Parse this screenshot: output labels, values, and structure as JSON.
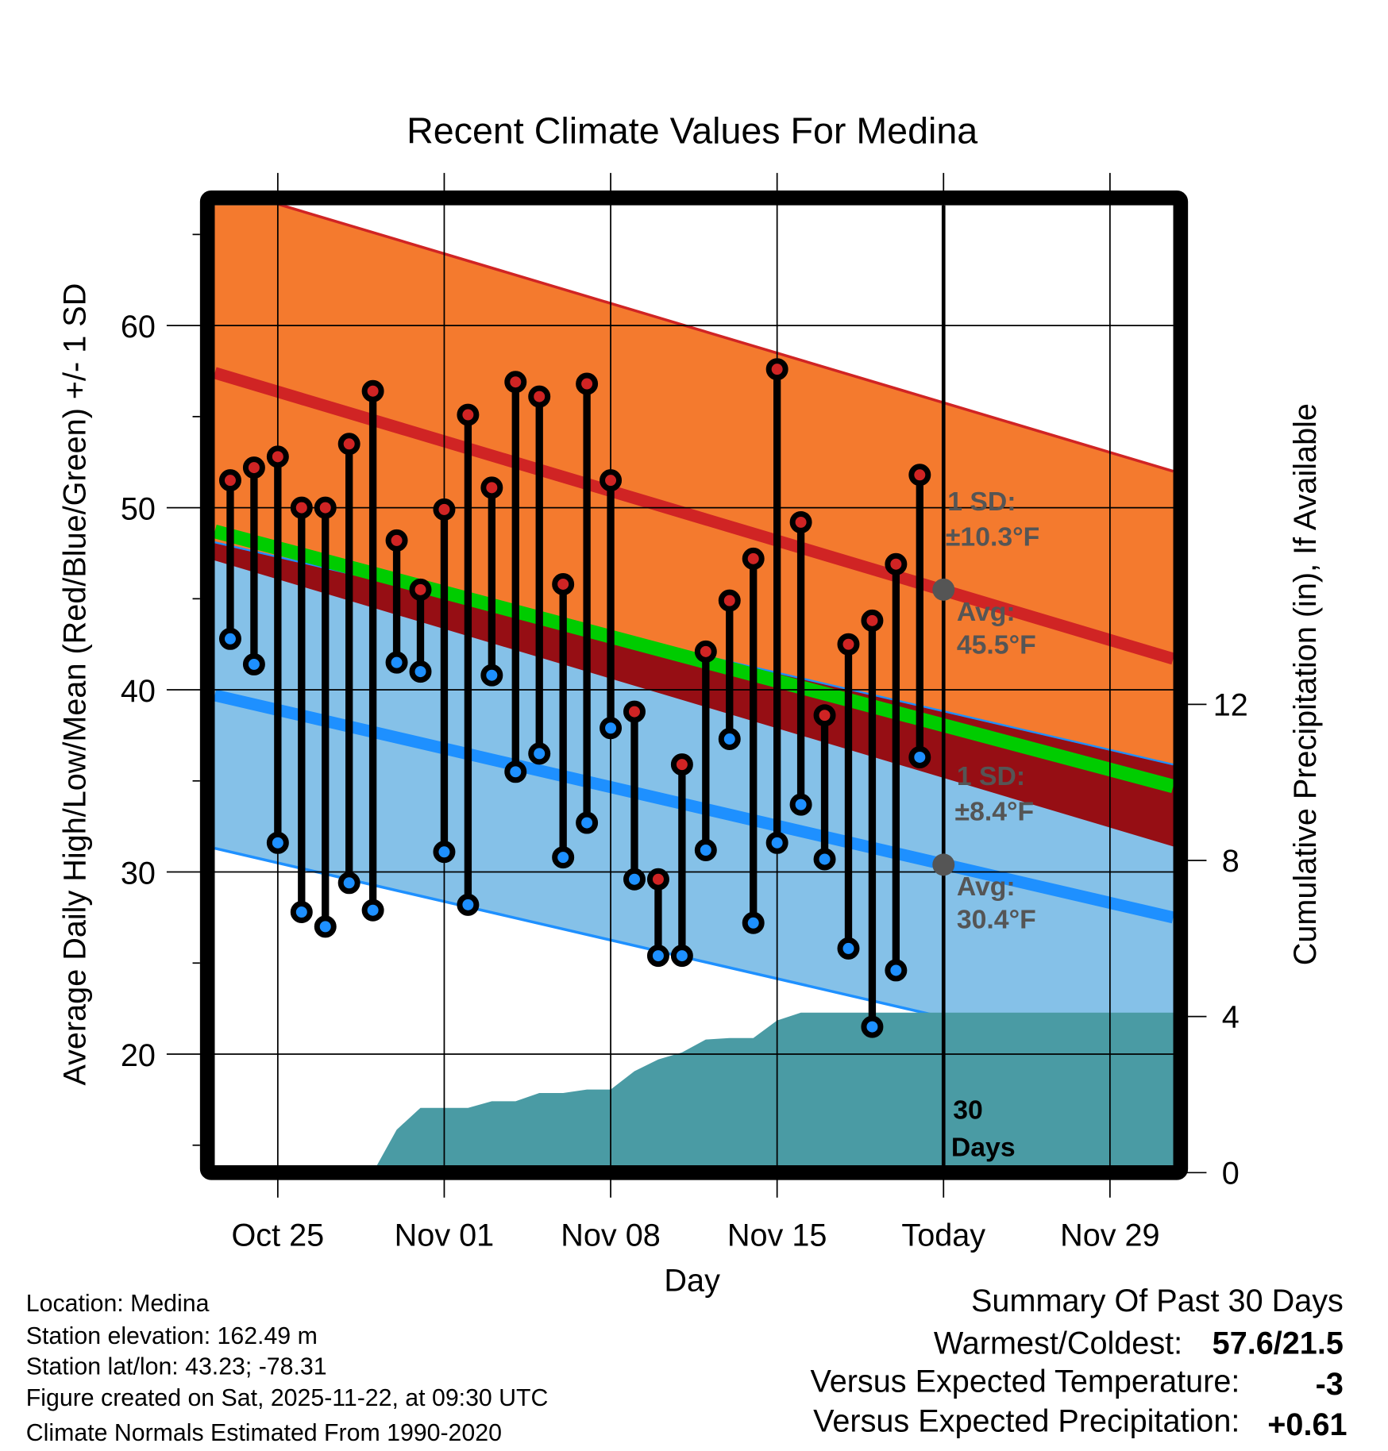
{
  "chart_data": {
    "type": "line",
    "title": "Recent Climate Values For Medina",
    "xlabel": "Day",
    "ylabel": "Average Daily High/Low/Mean (Red/Blue/Green) +/- 1 SD",
    "y2label": "Cumulative Precipitation (in), If Available",
    "x_start_date": "Oct 23",
    "xlim_days": [
      -0.65,
      39.66
    ],
    "ylim": [
      13.9,
      66.6
    ],
    "y2lim": [
      0,
      24.6
    ],
    "x_ticks": [
      {
        "day": 2,
        "label": "Oct 25"
      },
      {
        "day": 9,
        "label": "Nov 01"
      },
      {
        "day": 16,
        "label": "Nov 08"
      },
      {
        "day": 23,
        "label": "Nov 15"
      },
      {
        "day": 30,
        "label": "Today"
      },
      {
        "day": 37,
        "label": "Nov 29"
      }
    ],
    "y_ticks": [
      "20",
      "30",
      "40",
      "50",
      "60"
    ],
    "y2_ticks": [
      "0",
      "4",
      "8",
      "12"
    ],
    "days": [
      "Oct 23",
      "Oct 24",
      "Oct 25",
      "Oct 26",
      "Oct 27",
      "Oct 28",
      "Oct 29",
      "Oct 30",
      "Oct 31",
      "Nov 01",
      "Nov 02",
      "Nov 03",
      "Nov 04",
      "Nov 05",
      "Nov 06",
      "Nov 07",
      "Nov 08",
      "Nov 09",
      "Nov 10",
      "Nov 11",
      "Nov 12",
      "Nov 13",
      "Nov 14",
      "Nov 15",
      "Nov 16",
      "Nov 17",
      "Nov 18",
      "Nov 19",
      "Nov 20",
      "Nov 21"
    ],
    "series": [
      {
        "name": "Daily High",
        "color": "#d02424",
        "values": [
          51.5,
          52.2,
          52.8,
          50.0,
          50.0,
          53.5,
          56.4,
          48.2,
          45.5,
          49.9,
          55.1,
          51.1,
          56.9,
          56.1,
          45.8,
          56.8,
          51.5,
          38.8,
          29.6,
          35.9,
          42.1,
          44.9,
          47.2,
          57.6,
          49.2,
          38.6,
          42.5,
          43.8,
          46.9,
          51.8
        ]
      },
      {
        "name": "Daily Low",
        "color": "#1e90ff",
        "values": [
          42.8,
          41.4,
          31.6,
          27.8,
          27.0,
          29.4,
          27.9,
          41.5,
          41.0,
          31.1,
          28.2,
          40.8,
          35.5,
          36.5,
          30.8,
          32.7,
          37.9,
          29.6,
          25.4,
          25.4,
          31.2,
          37.3,
          27.2,
          31.6,
          33.7,
          30.7,
          25.8,
          21.5,
          24.6,
          36.3
        ]
      },
      {
        "name": "Cumulative Precipitation",
        "color": "#4a9ba4",
        "values": [
          0,
          0,
          0,
          0,
          0,
          0,
          0,
          1.1,
          1.66,
          1.66,
          1.66,
          1.83,
          1.83,
          2.04,
          2.04,
          2.13,
          2.13,
          2.6,
          2.9,
          3.08,
          3.41,
          3.45,
          3.45,
          3.9,
          4.1,
          4.1,
          4.1,
          4.1,
          4.1,
          4.1
        ]
      }
    ],
    "normals": {
      "avg_high": {
        "start": 57.4,
        "end": 41.7,
        "color": "#d02424"
      },
      "high_sd": 10.3,
      "avg_low": {
        "start": 39.7,
        "end": 27.5,
        "color": "#1e90ff"
      },
      "low_sd": 8.4,
      "avg_mean": {
        "start": 48.7,
        "end": 34.7,
        "color": "#00cc00"
      },
      "high_band_color": "#f47a2e",
      "low_band_color": "#85c1e8",
      "overlap_color": "#960e14"
    },
    "annotations": {
      "high_sd_label": "1 SD:",
      "high_sd_value": "±10.3°F",
      "high_avg_label": "Avg:",
      "high_avg_value": "45.5°F",
      "low_sd_label": "1 SD:",
      "low_sd_value": "±8.4°F",
      "low_avg_label": "Avg:",
      "low_avg_value": "30.4°F",
      "today_avg_high": 45.5,
      "today_avg_low": 30.4,
      "window_line1": "30",
      "window_line2": "Days"
    }
  },
  "footer": {
    "location": "Location: Medina",
    "elevation": "Station elevation: 162.49 m",
    "latlon": "Station lat/lon: 43.23; -78.31",
    "created": "Figure created on Sat, 2025-11-22, at 09:30 UTC",
    "normals": "Climate Normals Estimated From 1990-2020"
  },
  "summary": {
    "title": "Summary Of Past 30 Days",
    "warm_cold_label": "Warmest/Coldest:",
    "warm_cold_value": "57.6/21.5",
    "temp_label": "Versus Expected Temperature:",
    "temp_value": "-3",
    "temp_color": "#1e90ff",
    "precip_label": "Versus Expected Precipitation:",
    "precip_value": "+0.61",
    "precip_color": "#22bb22"
  }
}
